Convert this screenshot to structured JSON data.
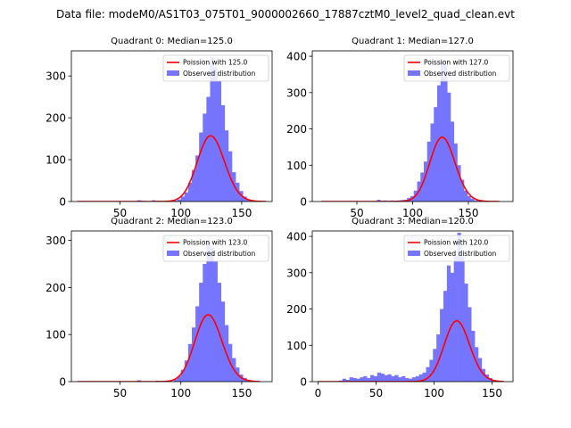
{
  "figure": {
    "suptitle": "Data file: modeM0/AS1T03_075T01_9000002660_17887cztM0_level2_quad_clean.evt"
  },
  "colors": {
    "bars": "#7575ff",
    "curve": "#ff0000",
    "axes": "#000000"
  },
  "chart_data": [
    {
      "type": "bar",
      "title": "Quadrant 0: Median=125.0",
      "legend": {
        "curve": "Poission with 125.0",
        "bars": "Observed distribution",
        "placement": "upper-right"
      },
      "xlim": [
        10,
        175
      ],
      "ylim": [
        0,
        360
      ],
      "xticks": [
        50,
        100,
        150
      ],
      "yticks": [
        0,
        100,
        200,
        300
      ],
      "poisson_mean": 125.0,
      "poisson_total": 4400,
      "curve_x": [
        15,
        170
      ],
      "bin_width": 3,
      "bins_x": [
        64,
        67,
        76,
        79,
        94,
        97,
        100,
        103,
        106,
        109,
        112,
        115,
        118,
        121,
        124,
        127,
        130,
        133,
        136,
        139,
        142,
        145,
        148,
        151,
        154,
        157
      ],
      "values": [
        3,
        2,
        3,
        2,
        2,
        5,
        12,
        22,
        45,
        75,
        110,
        165,
        210,
        250,
        345,
        320,
        290,
        230,
        170,
        120,
        70,
        45,
        25,
        12,
        5,
        2
      ]
    },
    {
      "type": "bar",
      "title": "Quadrant 1: Median=127.0",
      "legend": {
        "curve": "Poission with 127.0",
        "bars": "Observed distribution",
        "placement": "upper-right"
      },
      "xlim": [
        10,
        190
      ],
      "ylim": [
        0,
        415
      ],
      "xticks": [
        50,
        100,
        150
      ],
      "yticks": [
        0,
        100,
        200,
        300,
        400
      ],
      "poisson_mean": 127.0,
      "poisson_total": 5000,
      "curve_x": [
        18,
        178
      ],
      "bin_width": 3,
      "bins_x": [
        68,
        71,
        74,
        77,
        80,
        83,
        86,
        89,
        92,
        95,
        98,
        101,
        104,
        107,
        110,
        113,
        116,
        119,
        122,
        125,
        128,
        131,
        134,
        137,
        140,
        143,
        146,
        149,
        152,
        155,
        158
      ],
      "values": [
        5,
        2,
        3,
        2,
        3,
        2,
        3,
        4,
        5,
        10,
        15,
        30,
        55,
        80,
        110,
        165,
        215,
        260,
        320,
        390,
        375,
        300,
        220,
        160,
        100,
        60,
        30,
        15,
        8,
        3,
        2
      ]
    },
    {
      "type": "bar",
      "title": "Quadrant 2: Median=123.0",
      "legend": {
        "curve": "Poission with 123.0",
        "bars": "Observed distribution",
        "placement": "upper-right"
      },
      "xlim": [
        10,
        175
      ],
      "ylim": [
        0,
        320
      ],
      "xticks": [
        50,
        100,
        150
      ],
      "yticks": [
        0,
        100,
        200,
        300
      ],
      "poisson_mean": 123.0,
      "poisson_total": 3950,
      "curve_x": [
        15,
        165
      ],
      "bin_width": 3,
      "bins_x": [
        64,
        79,
        94,
        97,
        100,
        103,
        106,
        109,
        112,
        115,
        118,
        121,
        124,
        127,
        130,
        133,
        136,
        139,
        142,
        145,
        148,
        151,
        154,
        157,
        160
      ],
      "values": [
        3,
        2,
        5,
        12,
        25,
        45,
        80,
        115,
        160,
        210,
        250,
        300,
        285,
        255,
        210,
        170,
        120,
        80,
        50,
        30,
        15,
        8,
        4,
        2,
        1
      ]
    },
    {
      "type": "bar",
      "title": "Quadrant 3: Median=120.0",
      "legend": {
        "curve": "Poission with 120.0",
        "bars": "Observed distribution",
        "placement": "upper-right"
      },
      "xlim": [
        -5,
        168
      ],
      "ylim": [
        0,
        415
      ],
      "xticks": [
        0,
        50,
        100,
        150
      ],
      "yticks": [
        0,
        100,
        200,
        300,
        400
      ],
      "poisson_mean": 120.0,
      "poisson_total": 4600,
      "curve_x": [
        0,
        160
      ],
      "bin_width": 3,
      "bins_x": [
        18,
        21,
        24,
        27,
        30,
        33,
        36,
        39,
        42,
        45,
        48,
        51,
        54,
        57,
        60,
        63,
        66,
        69,
        72,
        75,
        78,
        81,
        84,
        87,
        90,
        93,
        96,
        99,
        102,
        105,
        108,
        111,
        114,
        117,
        120,
        123,
        126,
        129,
        132,
        135,
        138,
        141,
        144,
        147,
        150,
        153
      ],
      "values": [
        3,
        8,
        5,
        12,
        10,
        8,
        12,
        15,
        10,
        18,
        15,
        25,
        22,
        18,
        20,
        15,
        18,
        12,
        15,
        10,
        8,
        12,
        15,
        20,
        25,
        40,
        60,
        90,
        130,
        200,
        250,
        320,
        300,
        345,
        410,
        345,
        270,
        205,
        140,
        95,
        65,
        35,
        20,
        10,
        5,
        2
      ]
    }
  ]
}
